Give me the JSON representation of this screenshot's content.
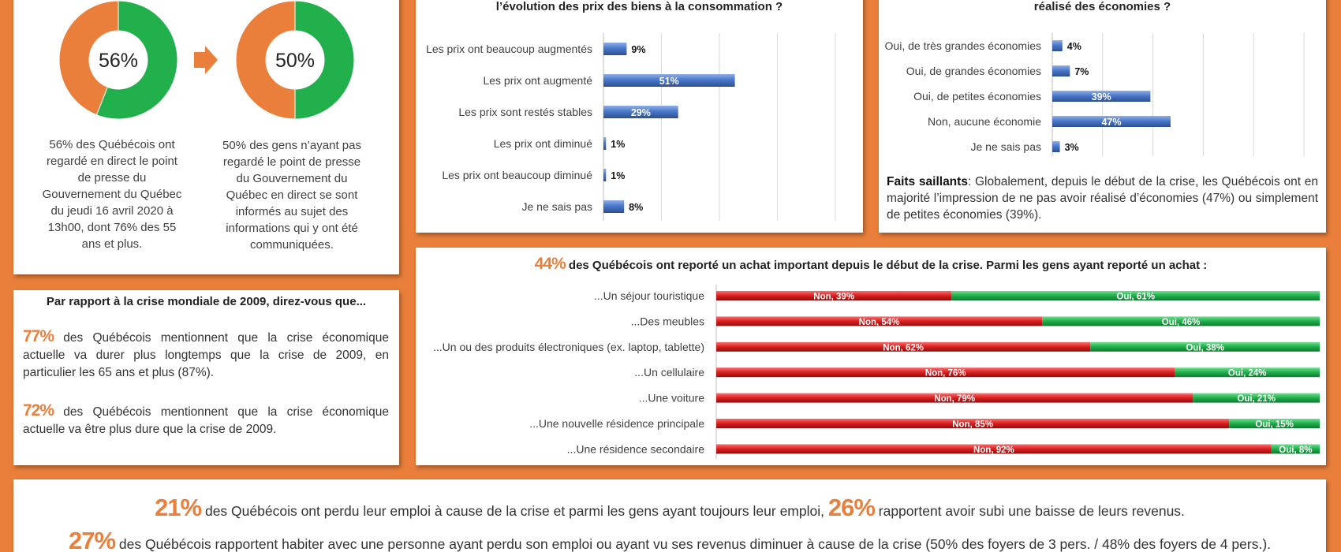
{
  "colors": {
    "orange": "#e97f3a",
    "green": "#21b04b",
    "red": "#cc1e1e",
    "blue": "#4472c4",
    "white": "#ffffff"
  },
  "donuts": [
    {
      "label": "56%",
      "value": 56,
      "caption": "56% des Québécois ont regardé en direct le point de presse du Gouvernement du Québec du jeudi 16 avril 2020 à 13h00, dont 76% des 55 ans et plus."
    },
    {
      "label": "50%",
      "value": 50,
      "caption": "50% des gens n’ayant pas regardé le point de presse du Gouvernement du Québec en direct se sont informés au sujet des informations qui y ont été communiquées."
    }
  ],
  "comparison": {
    "title": "Par rapport à la crise mondiale de 2009, direz-vous que...",
    "items": [
      {
        "pct": "77%",
        "text": " des Québécois mentionnent que la crise économique actuelle va durer plus longtemps que la crise de 2009, en particulier les 65 ans et plus (87%)."
      },
      {
        "pct": "72%",
        "text": " des Québécois mentionnent que la crise économique actuelle va être plus dure que la crise de 2009."
      }
    ]
  },
  "prices_title": "l’évolution des prix des biens à la consommation ?",
  "savings_title": "réalisé des économies ?",
  "savings_note": {
    "label": "Faits saillants",
    "text": ": Globalement, depuis le début de la crise, les Québécois ont en majorité l’impression de ne pas avoir réalisé d’économies (47%) ou simplement de petites économies (39%)."
  },
  "purchase_title": {
    "pct": "44%",
    "text": " des Québécois ont reporté un achat important depuis le début de la crise. Parmi les gens ayant reporté un achat :"
  },
  "footer": {
    "line1": {
      "pct1": "21%",
      "text1": " des Québécois ont perdu leur emploi à cause de la crise et parmi les gens ayant toujours leur emploi, ",
      "pct2": "26%",
      "text2": " rapportent avoir subi une baisse de leurs revenus."
    },
    "line2": {
      "pct": "27%",
      "text": " des Québécois rapportent habiter avec une personne ayant perdu son emploi ou ayant vu ses revenus diminuer à cause de la crise (50% des foyers de 3 pers. / 48% des foyers de 4 pers.)."
    }
  },
  "chart_data": [
    {
      "type": "bar",
      "orientation": "horizontal",
      "title": "l’évolution des prix des biens à la consommation ?",
      "categories": [
        "Les prix ont beaucoup augmentés",
        "Les prix ont augmenté",
        "Les prix sont restés stables",
        "Les prix ont diminué",
        "Les prix ont beaucoup diminué",
        "Je ne sais pas"
      ],
      "values": [
        9,
        51,
        29,
        1,
        1,
        8
      ],
      "data_labels": [
        "9%",
        "51%",
        "29%",
        "1%",
        "1%",
        "8%"
      ],
      "xlim": [
        0,
        90
      ]
    },
    {
      "type": "bar",
      "orientation": "horizontal",
      "title": "réalisé des économies ?",
      "categories": [
        "Oui, de très grandes économies",
        "Oui, de grandes économies",
        "Oui, de petites économies",
        "Non, aucune économie",
        "Je ne sais pas"
      ],
      "values": [
        4,
        7,
        39,
        47,
        3
      ],
      "data_labels": [
        "4%",
        "7%",
        "39%",
        "47%",
        "3%"
      ],
      "xlim": [
        0,
        100
      ]
    },
    {
      "type": "bar",
      "orientation": "horizontal",
      "stacked": true,
      "categories": [
        "...Un séjour touristique",
        "...Des meubles",
        "...Un ou des produits électroniques (ex. laptop, tablette)",
        "...Un cellulaire",
        "...Une voiture",
        "...Une nouvelle résidence principale",
        "...Une résidence secondaire"
      ],
      "series": [
        {
          "name": "Non",
          "values": [
            39,
            54,
            62,
            76,
            79,
            85,
            92
          ],
          "labels": [
            "Non, 39%",
            "Non, 54%",
            "Non, 62%",
            "Non, 76%",
            "Non, 79%",
            "Non, 85%",
            "Non, 92%"
          ]
        },
        {
          "name": "Oui",
          "values": [
            61,
            46,
            38,
            24,
            21,
            15,
            8
          ],
          "labels": [
            "Oui, 61%",
            "Oui, 46%",
            "Oui, 38%",
            "Oui, 24%",
            "Oui, 21%",
            "Oui, 15%",
            "Oui, 8%"
          ]
        }
      ],
      "xlim": [
        0,
        100
      ]
    }
  ]
}
